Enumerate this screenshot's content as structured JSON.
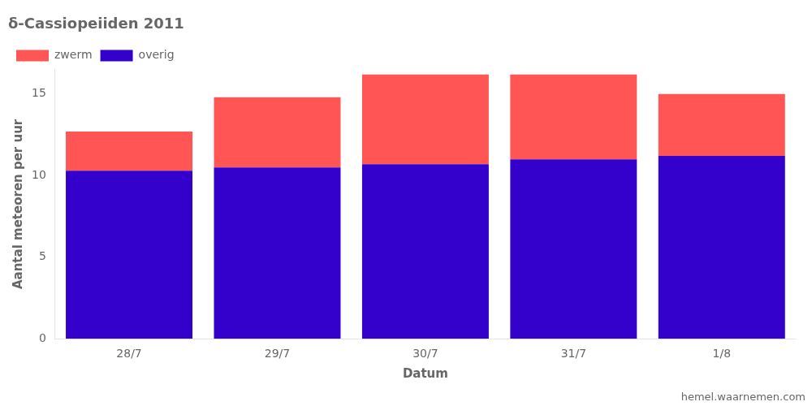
{
  "chart_data": {
    "type": "bar",
    "stacked": true,
    "title": "δ-Cassiopeiiden 2011",
    "xlabel": "Datum",
    "ylabel": "Aantal meteoren per uur",
    "annotations": [
      "hemel.waarnemen.com"
    ],
    "categories": [
      "28/7",
      "29/7",
      "30/7",
      "31/7",
      "1/8"
    ],
    "series": [
      {
        "name": "overig",
        "color": "#3300cc",
        "values": [
          10.3,
          10.5,
          10.7,
          11.0,
          11.2
        ]
      },
      {
        "name": "zwerm",
        "color": "#ff5555",
        "values": [
          2.4,
          4.3,
          5.5,
          5.2,
          3.8
        ]
      }
    ],
    "ylim": [
      0,
      16.5
    ],
    "yticks": [
      0,
      5,
      10,
      15
    ],
    "grid": false,
    "legend": "upper left"
  }
}
